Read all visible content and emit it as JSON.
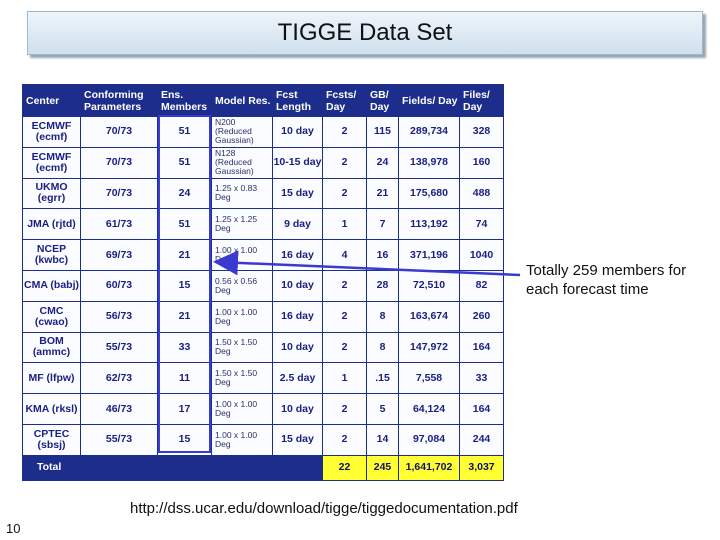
{
  "title": "TIGGE Data Set",
  "columns": [
    "Center",
    "Conforming Parameters",
    "Ens. Members",
    "Model Res.",
    "Fcst Length",
    "Fcsts/ Day",
    "GB/ Day",
    "Fields/ Day",
    "Files/ Day"
  ],
  "rows": [
    {
      "center": "ECMWF (ecmf)",
      "params": "70/73",
      "members": "51",
      "res": "N200 (Reduced Gaussian)",
      "length": "10 day",
      "fcsts": "2",
      "gb": "115",
      "fields": "289,734",
      "files": "328"
    },
    {
      "center": "ECMWF (ecmf)",
      "params": "70/73",
      "members": "51",
      "res": "N128 (Reduced Gaussian)",
      "length": "10-15 day",
      "fcsts": "2",
      "gb": "24",
      "fields": "138,978",
      "files": "160"
    },
    {
      "center": "UKMO (egrr)",
      "params": "70/73",
      "members": "24",
      "res": "1.25 x 0.83 Deg",
      "length": "15 day",
      "fcsts": "2",
      "gb": "21",
      "fields": "175,680",
      "files": "488"
    },
    {
      "center": "JMA (rjtd)",
      "params": "61/73",
      "members": "51",
      "res": "1.25 x 1.25 Deg",
      "length": "9 day",
      "fcsts": "1",
      "gb": "7",
      "fields": "113,192",
      "files": "74"
    },
    {
      "center": "NCEP (kwbc)",
      "params": "69/73",
      "members": "21",
      "res": "1.00 x 1.00 Deg",
      "length": "16 day",
      "fcsts": "4",
      "gb": "16",
      "fields": "371,196",
      "files": "1040"
    },
    {
      "center": "CMA (babj)",
      "params": "60/73",
      "members": "15",
      "res": "0.56 x 0.56 Deg",
      "length": "10 day",
      "fcsts": "2",
      "gb": "28",
      "fields": "72,510",
      "files": "82"
    },
    {
      "center": "CMC (cwao)",
      "params": "56/73",
      "members": "21",
      "res": "1.00 x 1.00 Deg",
      "length": "16 day",
      "fcsts": "2",
      "gb": "8",
      "fields": "163,674",
      "files": "260"
    },
    {
      "center": "BOM (ammc)",
      "params": "55/73",
      "members": "33",
      "res": "1.50 x 1.50 Deg",
      "length": "10 day",
      "fcsts": "2",
      "gb": "8",
      "fields": "147,972",
      "files": "164"
    },
    {
      "center": "MF (lfpw)",
      "params": "62/73",
      "members": "11",
      "res": "1.50 x 1.50 Deg",
      "length": "2.5 day",
      "fcsts": "1",
      "gb": ".15",
      "fields": "7,558",
      "files": "33"
    },
    {
      "center": "KMA (rksl)",
      "params": "46/73",
      "members": "17",
      "res": "1.00 x 1.00 Deg",
      "length": "10 day",
      "fcsts": "2",
      "gb": "5",
      "fields": "64,124",
      "files": "164"
    },
    {
      "center": "CPTEC (sbsj)",
      "params": "55/73",
      "members": "15",
      "res": "1.00 x 1.00 Deg",
      "length": "15 day",
      "fcsts": "2",
      "gb": "14",
      "fields": "97,084",
      "files": "244"
    }
  ],
  "total": {
    "label": "Total",
    "fcsts": "22",
    "gb": "245",
    "fields": "1,641,702",
    "files": "3,037"
  },
  "note": "Totally 259 members for each forecast time",
  "url": "http://dss.ucar.edu/download/tigge/tiggedocumentation.pdf",
  "page_number": "10",
  "colors": {
    "table_border": "#1d2d8c",
    "highlight": "#ffff33",
    "members_box": "#3a3ad0"
  }
}
